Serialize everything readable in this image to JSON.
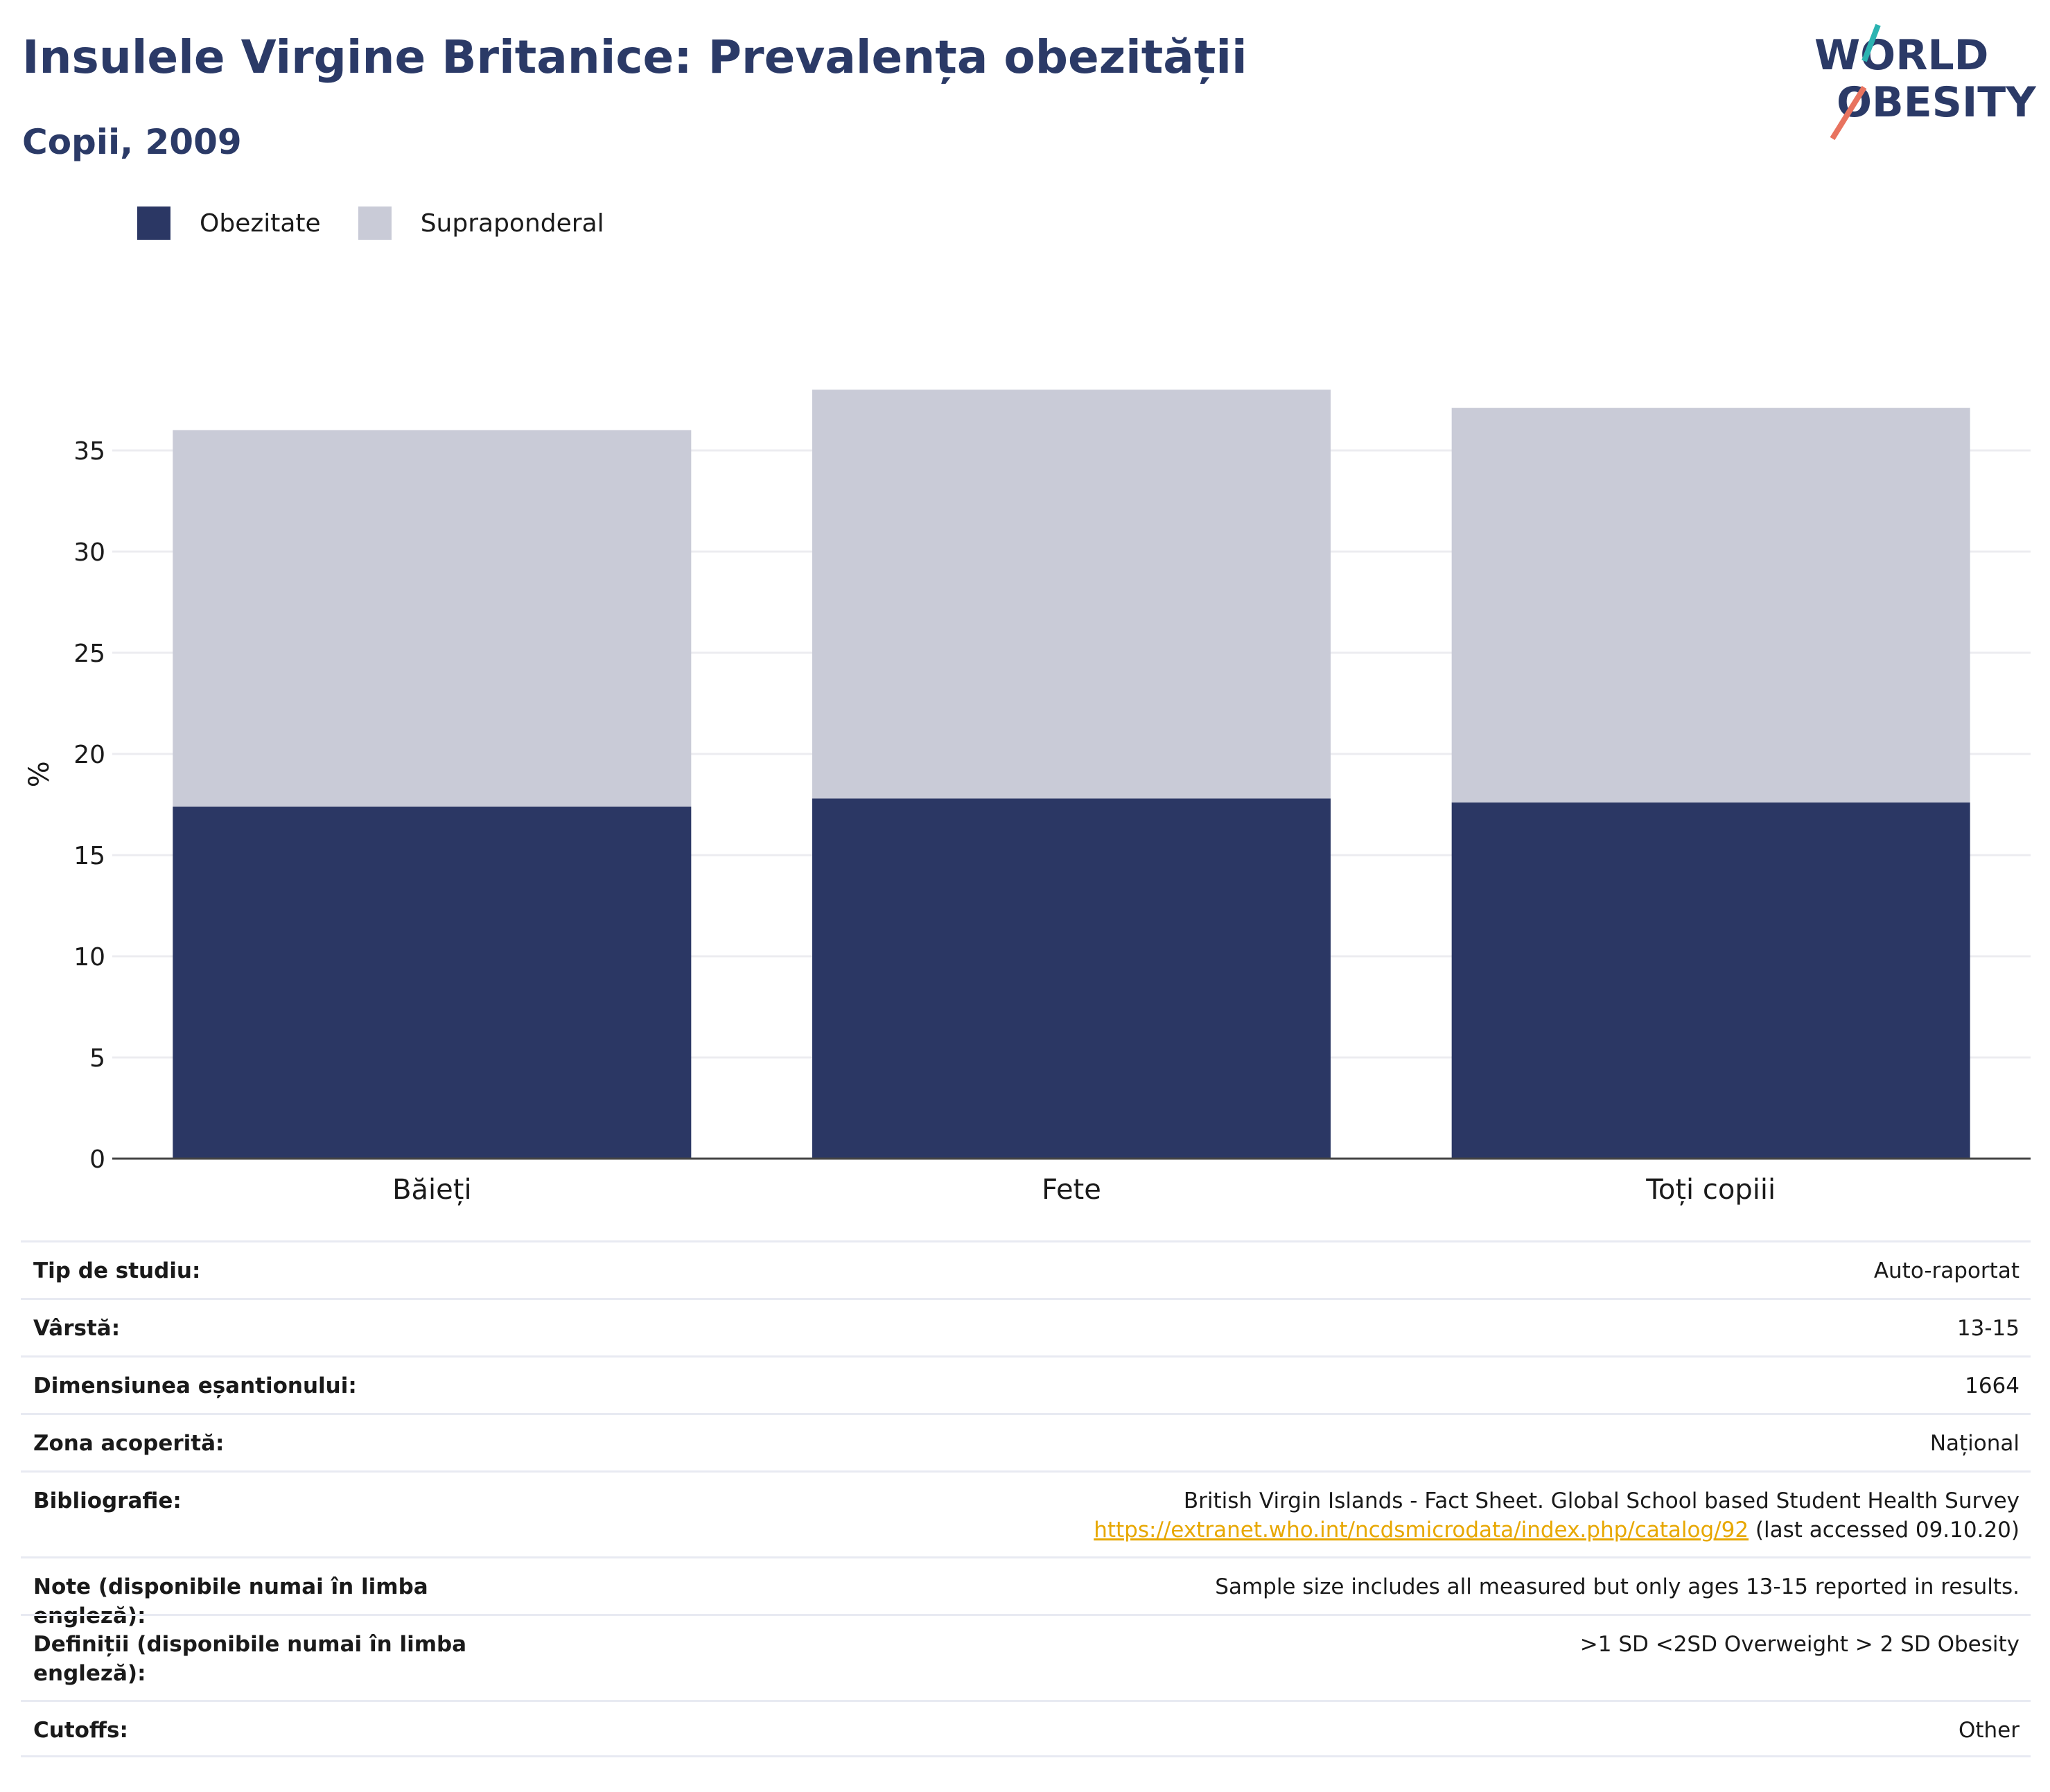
{
  "title": "Insulele Virgine Britanice: Prevalența obezității",
  "subtitle": "Copii, 2009",
  "logo": {
    "line1": "WORLD",
    "line2": "OBESITY"
  },
  "colors": {
    "obesity": "#2b3764",
    "overweight": "#c9cbd7",
    "title": "#2b3a67",
    "link": "#e7a700",
    "logo_teal": "#2bb3b1",
    "logo_coral": "#e8735f"
  },
  "chart_data": {
    "type": "bar",
    "stacked": true,
    "categories": [
      "Băieți",
      "Fete",
      "Toți copiii"
    ],
    "series": [
      {
        "name": "Obezitate",
        "values": [
          17.4,
          17.8,
          17.6
        ]
      },
      {
        "name": "Supraponderal",
        "values": [
          18.6,
          20.2,
          19.5
        ]
      }
    ],
    "ylabel": "%",
    "xlabel": "",
    "ylim": [
      0,
      38
    ],
    "yticks": [
      0,
      5,
      10,
      15,
      20,
      25,
      30,
      35
    ],
    "grid": true,
    "legend_position": "top-left"
  },
  "info": [
    {
      "label": "Tip de studiu:",
      "value": "Auto-raportat"
    },
    {
      "label": "Vârstă:",
      "value": "13-15"
    },
    {
      "label": "Dimensiunea eșantionului:",
      "value": "1664"
    },
    {
      "label": "Zona acoperită:",
      "value": "Național"
    },
    {
      "label": "Bibliografie:",
      "value": "British Virgin Islands - Fact Sheet. Global School based Student Health Survey",
      "link": "https://extranet.who.int/ncdsmicrodata/index.php/catalog/92",
      "suffix": " (last accessed 09.10.20)"
    },
    {
      "label": "Note (disponibile numai în limba engleză):",
      "value": "Sample size includes all measured but only ages 13-15 reported in results."
    },
    {
      "label": "Definiții (disponibile numai în limba engleză):",
      "value": ">1 SD <2SD Overweight > 2 SD Obesity"
    },
    {
      "label": "Cutoffs:",
      "value": "Other"
    }
  ]
}
